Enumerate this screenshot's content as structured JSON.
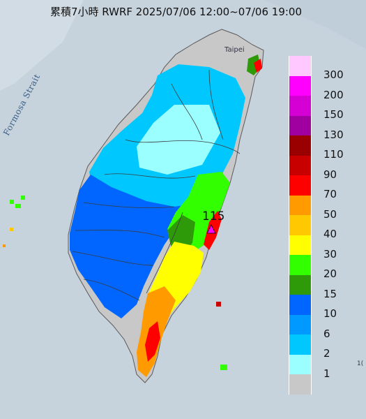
{
  "title": "累積7小時 RWRF 2025/07/06 12:00~07/06 19:00",
  "labels": {
    "strait": "Formosa Strait",
    "place": "Taipei",
    "station_value": "115",
    "edge_mark": "1("
  },
  "legend": {
    "labels": [
      "300",
      "200",
      "150",
      "130",
      "110",
      "90",
      "70",
      "50",
      "40",
      "30",
      "20",
      "15",
      "10",
      "6",
      "2",
      "1"
    ],
    "colors": [
      "#ffc8ff",
      "#ff00ff",
      "#d400d4",
      "#a000a0",
      "#9a0000",
      "#c80000",
      "#ff0000",
      "#ff9a00",
      "#ffc800",
      "#ffff00",
      "#32ff00",
      "#2e9a09",
      "#0066ff",
      "#0099ff",
      "#00c8ff",
      "#9bffff",
      "#c8c8c8"
    ]
  },
  "colors": {
    "sea": "#c8d3dc",
    "land_low": "#c8c8c8",
    "rain_2": "#9bffff",
    "rain_6": "#00c8ff",
    "rain_10": "#0066ff",
    "rain_20": "#32ff00",
    "rain_30": "#ffff00",
    "rain_50": "#ff9a00",
    "rain_70": "#ff0000"
  },
  "icons": [
    "station-triangle-icon"
  ]
}
